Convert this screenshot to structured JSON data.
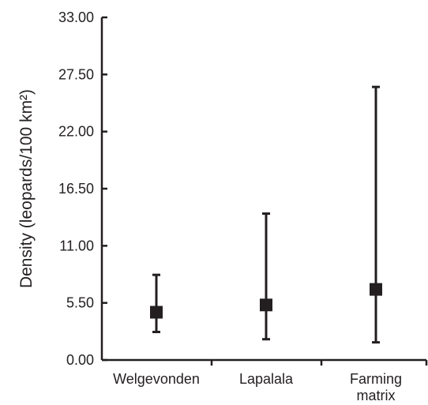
{
  "chart_data": {
    "type": "scatter",
    "ylabel": "Density (leopards/100 km²)",
    "xlabel": "",
    "ylim": [
      0,
      33
    ],
    "yticks": [
      "0.00",
      "5.50",
      "11.00",
      "16.50",
      "22.00",
      "27.50",
      "33.00"
    ],
    "grid": false,
    "categories": [
      [
        "Welgevonden"
      ],
      [
        "Lapalala"
      ],
      [
        "Farming",
        "matrix"
      ]
    ],
    "points": [
      {
        "category": "Welgevonden",
        "value": 4.6,
        "lower": 2.7,
        "upper": 8.2
      },
      {
        "category": "Lapalala",
        "value": 5.3,
        "lower": 2.0,
        "upper": 14.1
      },
      {
        "category": "Farming matrix",
        "value": 6.8,
        "lower": 1.7,
        "upper": 26.3
      }
    ],
    "colors": {
      "ink": "#231f20"
    }
  }
}
